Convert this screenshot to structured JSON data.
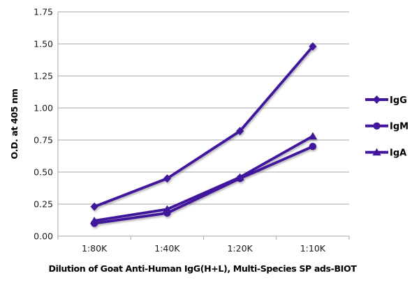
{
  "figure": {
    "background": "#ffffff"
  },
  "chart_data": {
    "type": "line",
    "title": "",
    "xlabel": "Dilution of Goat Anti-Human IgG(H+L), Multi-Species SP ads-BIOT",
    "ylabel": "O.D. at 405 nm",
    "categories": [
      "1:80K",
      "1:40K",
      "1:20K",
      "1:10K"
    ],
    "series": [
      {
        "name": "IgG",
        "marker": "diamond",
        "values": [
          0.23,
          0.45,
          0.82,
          1.48
        ]
      },
      {
        "name": "IgM",
        "marker": "circle",
        "values": [
          0.1,
          0.18,
          0.45,
          0.7
        ]
      },
      {
        "name": "IgA",
        "marker": "triangle",
        "values": [
          0.12,
          0.21,
          0.46,
          0.78
        ]
      }
    ],
    "ylim": [
      0,
      1.75
    ],
    "ytick_step": 0.25,
    "ytick_labels": [
      "0.00",
      "0.25",
      "0.50",
      "0.75",
      "1.00",
      "1.25",
      "1.50",
      "1.75"
    ],
    "grid": "horizontal",
    "legend_position": "right",
    "colors": {
      "series": "#41169d",
      "grid": "#a6a6a6",
      "axis": "#a6a6a6",
      "text": "#000000"
    }
  }
}
